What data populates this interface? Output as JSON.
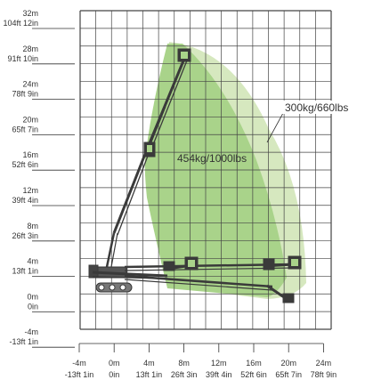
{
  "colors": {
    "outer_envelope": "#d6e8bf",
    "inner_envelope": "#a9d38a",
    "grid": "#444444",
    "machine": "#3a3a3a"
  },
  "zones": {
    "outer_label": "300kg/660lbs",
    "inner_label": "454kg/1000lbs"
  },
  "y_axis_ticks": [
    {
      "m": "32m",
      "ft": "104ft 12in"
    },
    {
      "m": "28m",
      "ft": "91ft 10in"
    },
    {
      "m": "24m",
      "ft": "78ft 9in"
    },
    {
      "m": "20m",
      "ft": "65ft 7in"
    },
    {
      "m": "16m",
      "ft": "52ft 6in"
    },
    {
      "m": "12m",
      "ft": "39ft 4in"
    },
    {
      "m": "8m",
      "ft": "26ft 3in"
    },
    {
      "m": "4m",
      "ft": "13ft 1in"
    },
    {
      "m": "0m",
      "ft": "0in"
    },
    {
      "m": "-4m",
      "ft": "-13ft 1in"
    }
  ],
  "x_axis_ticks": [
    {
      "m": "-4m",
      "ft": "-13ft 1in"
    },
    {
      "m": "0m",
      "ft": "0in"
    },
    {
      "m": "4m",
      "ft": "13ft 1in"
    },
    {
      "m": "8m",
      "ft": "26ft 3in"
    },
    {
      "m": "12m",
      "ft": "39ft 4in"
    },
    {
      "m": "16m",
      "ft": "52ft 6in"
    },
    {
      "m": "20m",
      "ft": "65ft 7in"
    },
    {
      "m": "24m",
      "ft": "78ft 9in"
    }
  ]
}
